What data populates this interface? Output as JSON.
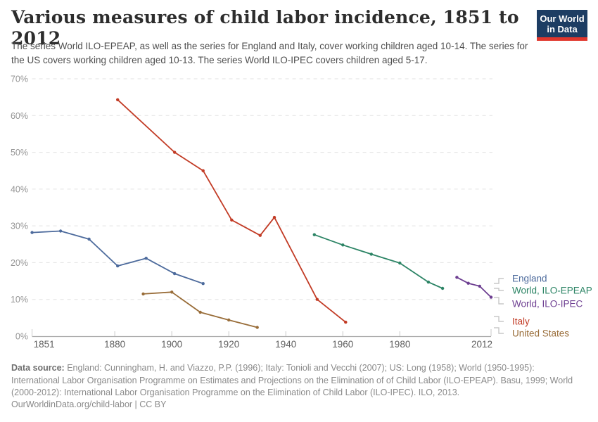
{
  "header": {
    "title": "Various measures of child labor incidence, 1851 to 2012",
    "subtitle": "The series World ILO-EPEAP, as well as the series for England and Italy, cover working children aged 10-14. The series for the US covers working children aged 10-13. The series World ILO-IPEC covers children aged 5-17.",
    "logo": {
      "line1": "Our World",
      "line2": "in Data",
      "bg_color": "#1d3d63",
      "bar_color": "#e0362c"
    }
  },
  "chart_data": {
    "type": "line",
    "title": "Various measures of child labor incidence, 1851 to 2012",
    "xlabel": "",
    "ylabel": "",
    "xlim": [
      1851,
      2012
    ],
    "ylim": [
      0,
      70
    ],
    "x_ticks": [
      1851,
      1880,
      1900,
      1920,
      1940,
      1960,
      1980,
      2012
    ],
    "y_ticks_percent": [
      0,
      10,
      20,
      30,
      40,
      50,
      60,
      70
    ],
    "y_tick_suffix": "%",
    "grid": "horizontal-dashed",
    "legend_position": "right",
    "series": [
      {
        "name": "England",
        "color": "#4C6A9C",
        "x": [
          1851,
          1861,
          1871,
          1881,
          1891,
          1901,
          1911
        ],
        "y": [
          28.2,
          28.6,
          26.4,
          19.1,
          21.2,
          17.0,
          14.3
        ]
      },
      {
        "name": "World, ILO-EPEAP",
        "color": "#2C8465",
        "x": [
          1950,
          1960,
          1970,
          1980,
          1990,
          1995
        ],
        "y": [
          27.6,
          24.8,
          22.3,
          19.9,
          14.7,
          13.0
        ]
      },
      {
        "name": "World, ILO-IPEC",
        "color": "#6D3E91",
        "x": [
          2000,
          2004,
          2008,
          2012
        ],
        "y": [
          16.0,
          14.4,
          13.6,
          10.6
        ]
      },
      {
        "name": "Italy",
        "color": "#C23B25",
        "x": [
          1881,
          1901,
          1911,
          1921,
          1931,
          1936,
          1951,
          1961
        ],
        "y": [
          64.3,
          50.0,
          45.0,
          31.6,
          27.4,
          32.3,
          10.0,
          3.8
        ]
      },
      {
        "name": "United States",
        "color": "#996D39",
        "x": [
          1890,
          1900,
          1910,
          1920,
          1930
        ],
        "y": [
          11.5,
          12.0,
          6.5,
          4.4,
          2.4
        ]
      }
    ]
  },
  "footer": {
    "source_label": "Data source:",
    "source_text": " England: Cunningham, H. and Viazzo, P.P. (1996); Italy: Tonioli and Vecchi (2007); US: Long (1958); World (1950-1995): International Labor Organisation Programme on Estimates and Projections on the Elimination of of Child Labor (ILO-EPEAP). Basu, 1999; World (2000-2012): International Labor Organisation Programme on the Elimination of Child Labor (ILO-IPEC). ILO, 2013.",
    "citation": "OurWorldinData.org/child-labor | CC BY"
  }
}
